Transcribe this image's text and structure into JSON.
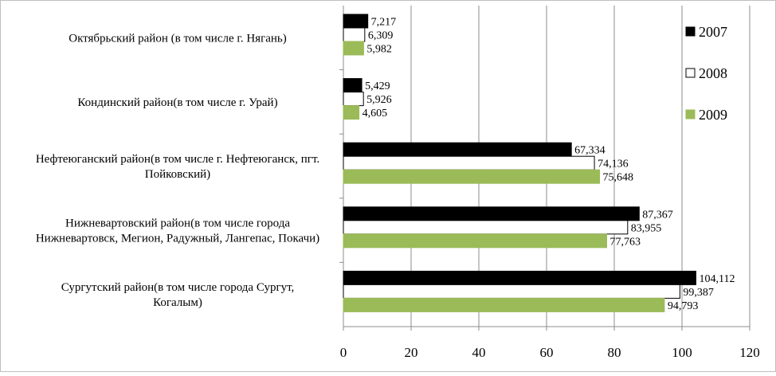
{
  "chart_data": {
    "type": "bar",
    "orientation": "horizontal",
    "categories": [
      [
        "Октябрьский район (в том числе г. Нягань)"
      ],
      [
        "Кондинский район(в том числе г. Урай)"
      ],
      [
        "Нефтеюганский район(в том числе г. Нефтеюганск, пгт.",
        "Пойковский)"
      ],
      [
        "Нижневартовский район(в том числе города",
        "Нижневартовск, Мегион, Радужный, Лангепас, Покачи)"
      ],
      [
        "Сургутский район(в том числе города Сургут,",
        "Когалым)"
      ]
    ],
    "series": [
      {
        "name": "2007",
        "color": "#000000",
        "stroke": "#000000",
        "values": [
          7.217,
          5.429,
          67.334,
          87.367,
          104.112
        ],
        "labels": [
          "7,217",
          "5,429",
          "67,334",
          "87,367",
          "104,112"
        ]
      },
      {
        "name": "2008",
        "color": "#ffffff",
        "stroke": "#000000",
        "values": [
          6.309,
          5.926,
          74.136,
          83.955,
          99.387
        ],
        "labels": [
          "6,309",
          "5,926",
          "74,136",
          "83,955",
          "99,387"
        ]
      },
      {
        "name": "2009",
        "color": "#9bbb59",
        "stroke": "#9bbb59",
        "values": [
          5.982,
          4.605,
          75.648,
          77.763,
          94.793
        ],
        "labels": [
          "5,982",
          "4,605",
          "75,648",
          "77,763",
          "94,793"
        ]
      }
    ],
    "xlim": [
      0,
      120
    ],
    "xticks": [
      "0",
      "20",
      "40",
      "60",
      "80",
      "100",
      "120"
    ],
    "grid": true,
    "legend_position": "right"
  }
}
